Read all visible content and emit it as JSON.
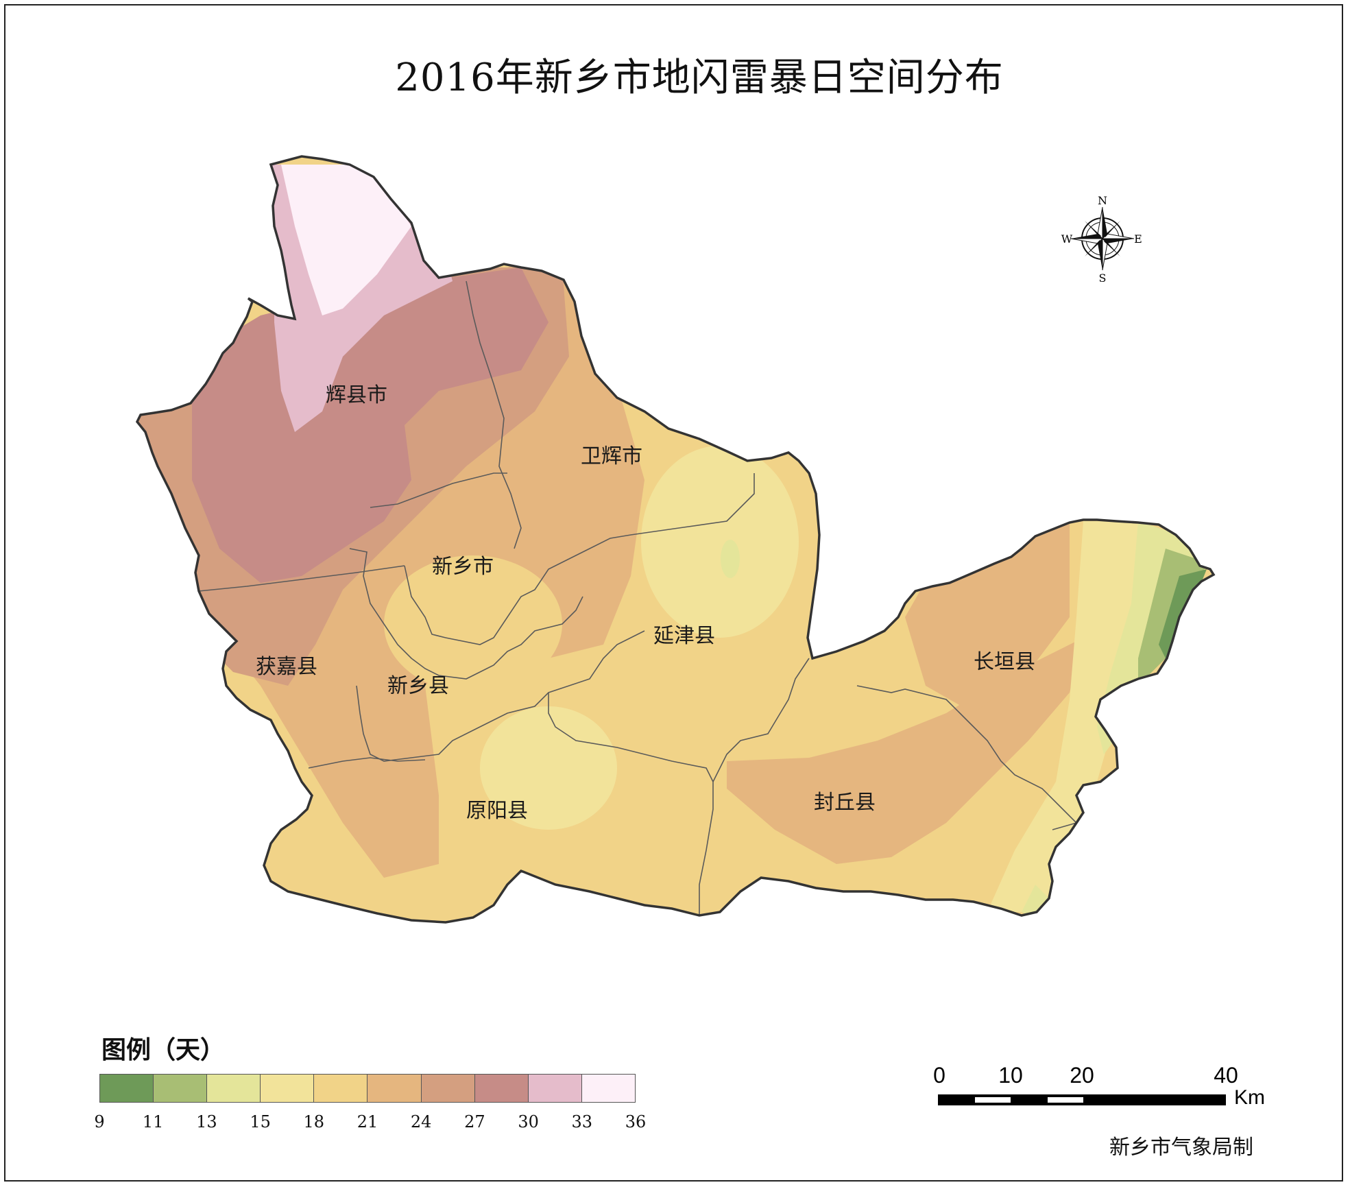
{
  "title": "2016年新乡市地闪雷暴日空间分布",
  "compass": {
    "n": "N",
    "s": "S",
    "e": "E",
    "w": "W"
  },
  "counties": [
    {
      "name": "辉县市"
    },
    {
      "name": "卫辉市"
    },
    {
      "name": "新乡市"
    },
    {
      "name": "延津县"
    },
    {
      "name": "获嘉县"
    },
    {
      "name": "新乡县"
    },
    {
      "name": "长垣县"
    },
    {
      "name": "原阳县"
    },
    {
      "name": "封丘县"
    }
  ],
  "legend": {
    "title": "图例（天）",
    "colors": [
      "#6e9a58",
      "#a8be74",
      "#e4e59a",
      "#f2e39a",
      "#f1d388",
      "#e5b67f",
      "#d49f80",
      "#c68c87",
      "#e5bccb",
      "#fdf0f8"
    ],
    "ticks": [
      "9",
      "11",
      "13",
      "15",
      "18",
      "21",
      "24",
      "27",
      "30",
      "33",
      "36"
    ]
  },
  "scalebar": {
    "labels": [
      "0",
      "10",
      "20",
      "40"
    ],
    "unit": "Km"
  },
  "credit": "新乡市气象局制"
}
